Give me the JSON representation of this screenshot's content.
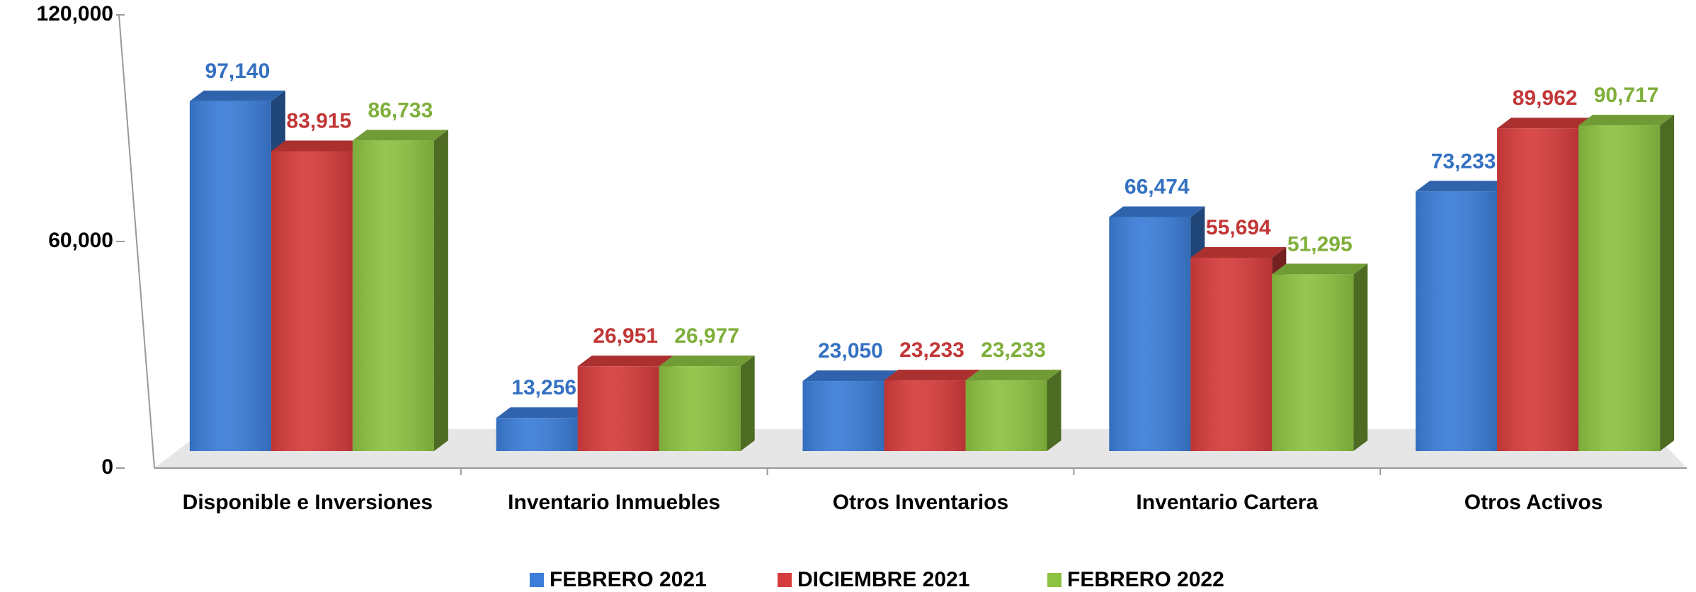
{
  "chart_data": {
    "type": "bar3d",
    "categories": [
      "Disponible e Inversiones",
      "Inventario Inmuebles",
      "Otros Inventarios",
      "Inventario Cartera",
      "Otros Activos"
    ],
    "series": [
      {
        "name": "FEBRERO 2021",
        "color": "#3b7dd8",
        "values": [
          97140,
          13256,
          23050,
          66474,
          73233
        ],
        "value_labels": [
          "97,140",
          "13,256",
          "23,050",
          "66,474",
          "73,233"
        ]
      },
      {
        "name": "DICIEMBRE 2021",
        "color": "#d63c3c",
        "values": [
          83915,
          26951,
          23233,
          55694,
          89962
        ],
        "value_labels": [
          "83,915",
          "26,951",
          "23,233",
          "55,694",
          "89,962"
        ]
      },
      {
        "name": "FEBRERO 2022",
        "color": "#8dc241",
        "values": [
          86733,
          26977,
          23233,
          51295,
          90717
        ],
        "value_labels": [
          "86,733",
          "26,977",
          "23,233",
          "51,295",
          "90,717"
        ]
      }
    ],
    "ylim": [
      0,
      120000
    ],
    "yticks": [
      0,
      {
        "value": 60000,
        "label": "60,000"
      },
      {
        "value": 120000,
        "label": "120,000"
      }
    ],
    "legend": "bottom"
  }
}
